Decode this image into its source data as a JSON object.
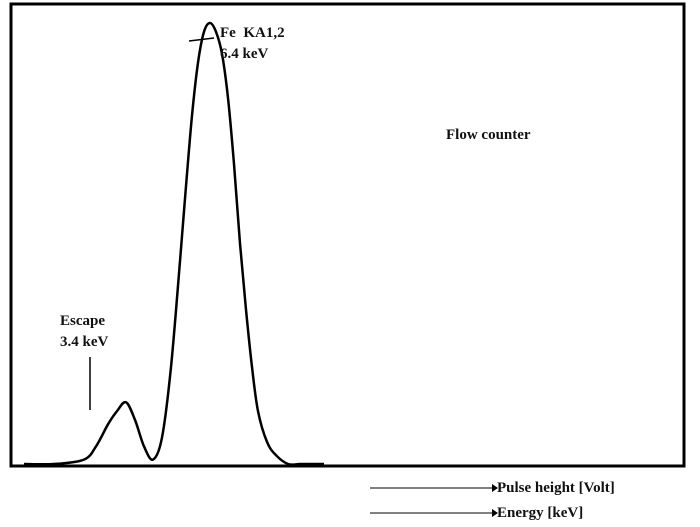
{
  "chart_data": {
    "type": "line",
    "title": "Flow counter",
    "xlabels": [
      "Pulse height [Volt]",
      "Energy [keV]"
    ],
    "ylabel": "",
    "grid": false,
    "xlim": [
      0,
      22
    ],
    "ylim": [
      0,
      1.0
    ],
    "annotations": [
      {
        "lines": [
          "Fe  KA1,2",
          "6.4 keV"
        ],
        "peak_energy_keV": 6.4
      },
      {
        "lines": [
          "Escape",
          "3.4 keV"
        ],
        "peak_energy_keV": 3.4
      }
    ],
    "series": [
      {
        "x": [
          0.0,
          1.0,
          2.0,
          2.4,
          2.8,
          3.1,
          3.4,
          3.7,
          4.0,
          4.3,
          4.6,
          4.9,
          5.2,
          5.4,
          5.6,
          5.8,
          6.0,
          6.2,
          6.4,
          6.6,
          6.8,
          7.0,
          7.2,
          7.4,
          7.6,
          7.8,
          8.1,
          8.4,
          8.8,
          9.2,
          9.6,
          10.0
        ],
        "y": [
          0.0,
          0.0,
          0.01,
          0.04,
          0.09,
          0.12,
          0.14,
          0.1,
          0.04,
          0.01,
          0.06,
          0.22,
          0.46,
          0.63,
          0.79,
          0.91,
          0.98,
          1.0,
          0.98,
          0.93,
          0.83,
          0.68,
          0.5,
          0.35,
          0.22,
          0.12,
          0.05,
          0.02,
          0.0,
          0.0,
          0.0,
          0.0
        ]
      }
    ]
  }
}
